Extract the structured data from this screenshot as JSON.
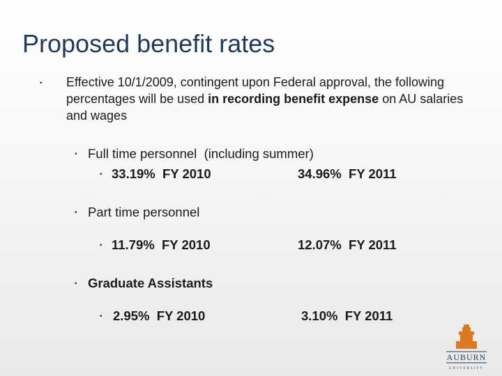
{
  "slide": {
    "title": "Proposed benefit rates",
    "intro": {
      "parts": [
        "Effective 10/1/2009, contingent upon Federal approval, the following percentages will be used ",
        "in recording benefit expense",
        " on AU salaries and wages"
      ]
    },
    "groups": [
      {
        "label": "Full time personnel  (including summer)",
        "rates": [
          "33.19%  FY 2010",
          "34.96%  FY 2011"
        ]
      },
      {
        "label": "Part time personnel",
        "rates": [
          "11.79%  FY 2010",
          "12.07%  FY 2011"
        ]
      },
      {
        "label": "Graduate Assistants",
        "rates": [
          "2.95%  FY 2010",
          "3.10%  FY 2011"
        ]
      }
    ],
    "logo": {
      "name": "AUBURN",
      "subtitle": "UNIVERSITY"
    }
  }
}
